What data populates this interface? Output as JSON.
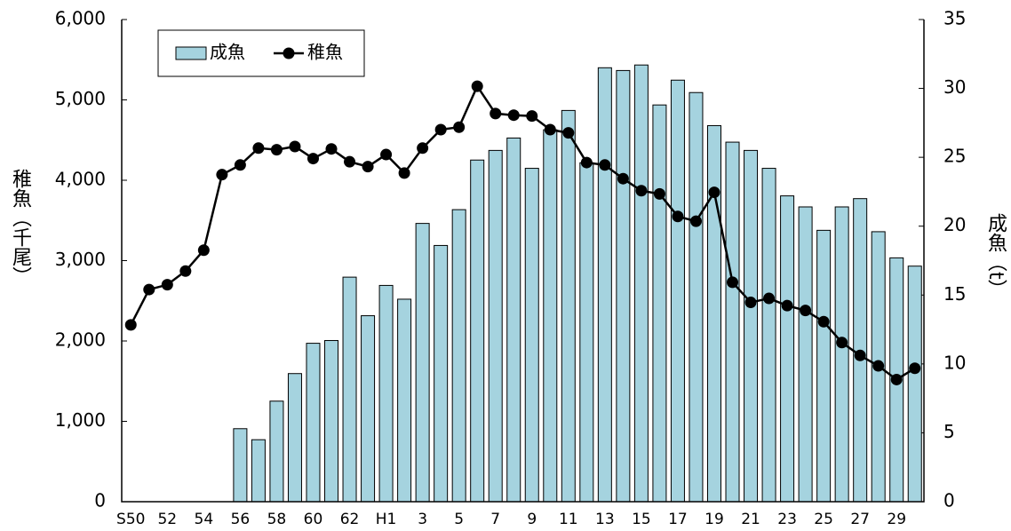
{
  "chart_data": {
    "type": "bar_line",
    "categories": [
      "S50",
      null,
      "52",
      null,
      "54",
      null,
      "56",
      null,
      "58",
      null,
      "60",
      null,
      "62",
      null,
      "H1",
      null,
      "3",
      null,
      "5",
      null,
      "7",
      null,
      "9",
      null,
      "11",
      null,
      "13",
      null,
      "15",
      null,
      "17",
      null,
      "19",
      null,
      "21",
      null,
      "23",
      null,
      "25",
      null,
      "27",
      null,
      "29",
      null
    ],
    "series": [
      {
        "name": "成魚",
        "type": "bar",
        "axis": "y2",
        "color": "#a5d3df",
        "values": [
          null,
          null,
          null,
          null,
          null,
          null,
          5.3,
          4.5,
          7.3,
          9.3,
          11.5,
          11.7,
          16.3,
          13.5,
          15.7,
          14.7,
          20.2,
          18.6,
          21.2,
          24.8,
          25.5,
          26.4,
          24.2,
          27.0,
          28.4,
          24.6,
          31.5,
          31.3,
          31.7,
          28.8,
          30.6,
          29.7,
          27.3,
          26.1,
          25.5,
          24.2,
          22.2,
          21.4,
          19.7,
          21.4,
          22.0,
          19.6,
          17.7,
          17.1
        ]
      },
      {
        "name": "稚魚",
        "type": "line",
        "axis": "y",
        "color": "#000000",
        "values": [
          2200,
          2640,
          2700,
          2870,
          3130,
          4070,
          4190,
          4400,
          4380,
          4420,
          4270,
          4390,
          4230,
          4170,
          4320,
          4090,
          4400,
          4630,
          4660,
          5170,
          4830,
          4810,
          4800,
          4630,
          4590,
          4220,
          4190,
          4020,
          3870,
          3830,
          3550,
          3490,
          3850,
          2730,
          2480,
          2530,
          2440,
          2380,
          2240,
          1980,
          1820,
          1690,
          1520,
          1660
        ]
      }
    ],
    "y_label": "稚魚（千尾）",
    "y2_label": "成魚（t）",
    "ylim": [
      0,
      6000
    ],
    "yticks": [
      0,
      {
        "value": 1000,
        "label": "1,000"
      },
      {
        "value": 2000,
        "label": "2,000"
      },
      {
        "value": 3000,
        "label": "3,000"
      },
      {
        "value": 4000,
        "label": "4,000"
      },
      {
        "value": 5000,
        "label": "5,000"
      },
      {
        "value": 6000,
        "label": "6,000"
      }
    ],
    "y2lim": [
      0,
      35
    ],
    "y2ticks": [
      0,
      5,
      10,
      15,
      20,
      25,
      30,
      35
    ],
    "legend": "top-left"
  }
}
